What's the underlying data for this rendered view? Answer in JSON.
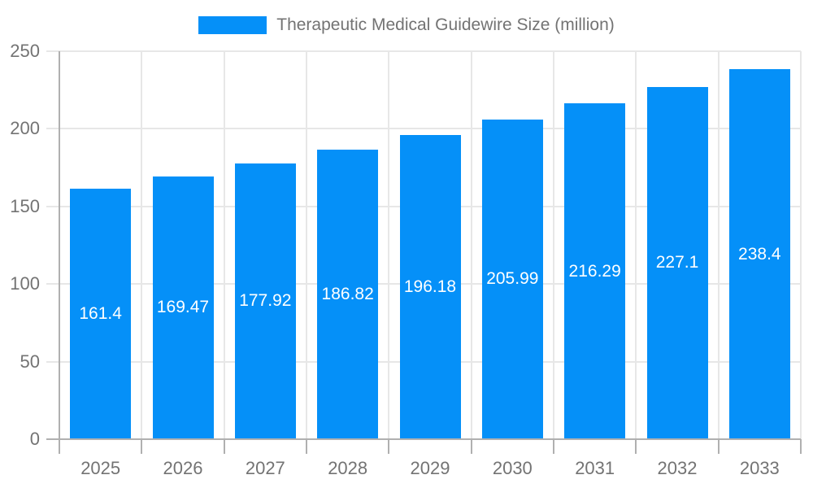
{
  "chart_data": {
    "type": "bar",
    "title": "Therapeutic Medical Guidewire Size (million)",
    "categories": [
      "2025",
      "2026",
      "2027",
      "2028",
      "2029",
      "2030",
      "2031",
      "2032",
      "2033"
    ],
    "values": [
      161.4,
      169.47,
      177.92,
      186.82,
      196.18,
      205.99,
      216.29,
      227.1,
      238.4
    ],
    "value_labels": [
      "161.4",
      "169.47",
      "177.92",
      "186.82",
      "196.18",
      "205.99",
      "216.29",
      "227.1",
      "238.4"
    ],
    "xlabel": "",
    "ylabel": "",
    "ylim": [
      0,
      250
    ],
    "y_ticks": [
      0,
      50,
      100,
      150,
      200,
      250
    ],
    "y_tick_labels": [
      "0",
      "50",
      "100",
      "150",
      "200",
      "250"
    ],
    "grid": true,
    "legend_position": "top",
    "colors": {
      "bar": "#0590f8",
      "bar_label_text": "#ffffff",
      "axis_text": "#737373",
      "gridline": "#e7e7e7",
      "axis_line": "#b0b0b0",
      "background": "#ffffff"
    }
  }
}
